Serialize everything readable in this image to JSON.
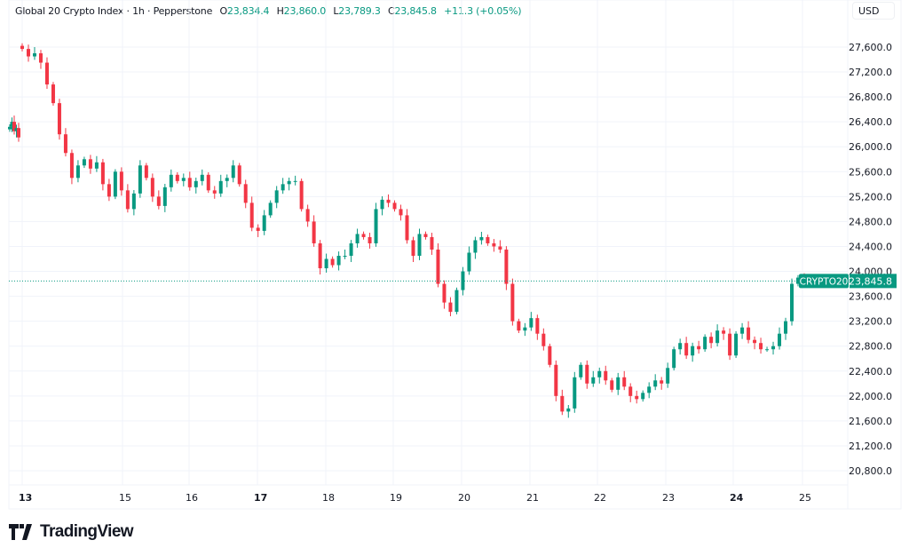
{
  "header": {
    "symbol_name": "Global 20 Crypto Index",
    "interval": "1h",
    "source": "Pepperstone",
    "separator": " · ",
    "ohlc": {
      "o_label": "O",
      "o": "23,834.4",
      "h_label": "H",
      "h": "23,860.0",
      "l_label": "L",
      "l": "23,789.3",
      "c_label": "C",
      "c": "23,845.8",
      "change": "+11.3 (+0.05%)"
    }
  },
  "currency_button": "USD",
  "price_label": {
    "ticker": "CRYPTO20",
    "value": "23,845.8",
    "price": 23845.8
  },
  "brand": "TradingView",
  "colors": {
    "up": "#089981",
    "down": "#f23645",
    "grid": "#f0f3fa",
    "text": "#131722"
  },
  "chart_data": {
    "type": "candlestick",
    "ylim": [
      20500,
      27950
    ],
    "yticks": [
      "20,800.0",
      "21,200.0",
      "21,600.0",
      "22,000.0",
      "22,400.0",
      "22,800.0",
      "23,200.0",
      "23,600.0",
      "24,000.0",
      "24,400.0",
      "24,800.0",
      "25,200.0",
      "25,600.0",
      "26,000.0",
      "26,400.0",
      "26,800.0",
      "27,200.0",
      "27,600.0"
    ],
    "xticks": [
      {
        "label": "13",
        "bold": true
      },
      {
        "label": "15",
        "bold": false
      },
      {
        "label": "16",
        "bold": false
      },
      {
        "label": "17",
        "bold": true
      },
      {
        "label": "18",
        "bold": false
      },
      {
        "label": "19",
        "bold": false
      },
      {
        "label": "20",
        "bold": false
      },
      {
        "label": "21",
        "bold": false
      },
      {
        "label": "22",
        "bold": false
      },
      {
        "label": "23",
        "bold": false
      },
      {
        "label": "24",
        "bold": true
      },
      {
        "label": "25",
        "bold": false
      }
    ],
    "grid": true,
    "pre_session_closes": [
      26320,
      26400,
      26250,
      26300,
      26150
    ],
    "closes": [
      27570,
      27450,
      27500,
      27350,
      27000,
      26700,
      26200,
      25900,
      25500,
      25700,
      25800,
      25650,
      25750,
      25400,
      25200,
      25600,
      25300,
      25000,
      25250,
      25700,
      25500,
      25200,
      25050,
      25350,
      25550,
      25450,
      25500,
      25350,
      25450,
      25550,
      25300,
      25250,
      25450,
      25500,
      25700,
      25400,
      25100,
      24700,
      24650,
      24900,
      25100,
      25300,
      25400,
      25450,
      25450,
      25000,
      24800,
      24450,
      24050,
      24200,
      24100,
      24250,
      24250,
      24450,
      24600,
      24550,
      24450,
      25000,
      25150,
      25100,
      25000,
      24900,
      24500,
      24250,
      24600,
      24550,
      24350,
      23800,
      23500,
      23350,
      23700,
      24000,
      24300,
      24500,
      24550,
      24450,
      24400,
      24350,
      23800,
      23200,
      23050,
      23100,
      23250,
      23000,
      22800,
      22500,
      22000,
      21750,
      21800,
      22300,
      22500,
      22200,
      22300,
      22400,
      22250,
      22100,
      22300,
      22150,
      22000,
      21950,
      22050,
      22150,
      22250,
      22200,
      22450,
      22750,
      22850,
      22650,
      22800,
      22750,
      22950,
      22850,
      23050,
      23000,
      22650,
      23000,
      23100,
      22900,
      22850,
      22750,
      22750,
      22800,
      23000,
      23200,
      23800,
      23900,
      23845.8
    ]
  }
}
